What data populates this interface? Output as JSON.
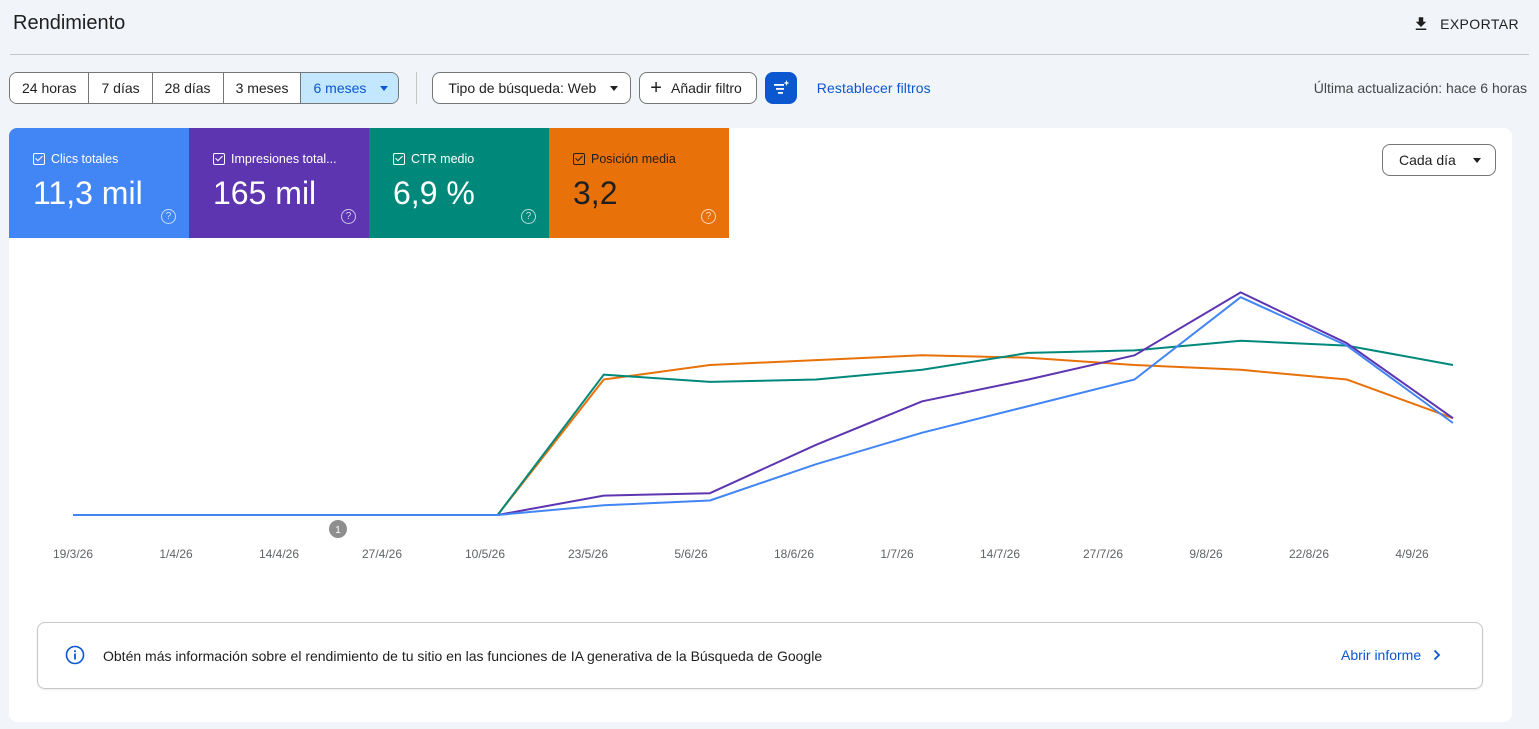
{
  "header": {
    "title": "Rendimiento",
    "export_label": "EXPORTAR"
  },
  "toolbar": {
    "ranges": [
      "24 horas",
      "7 días",
      "28 días",
      "3 meses",
      "6 meses"
    ],
    "selected_range": "6 meses",
    "search_type": "Tipo de búsqueda: Web",
    "add_filter": "Añadir filtro",
    "reset_filters": "Restablecer filtros",
    "last_update": "Última actualización: hace 6 horas"
  },
  "metrics": [
    {
      "label": "Clics totales",
      "value": "11,3 mil",
      "color": "#4285f4",
      "checked": true
    },
    {
      "label": "Impresiones total...",
      "value": "165 mil",
      "color": "#5e35b1",
      "checked": true
    },
    {
      "label": "CTR medio",
      "value": "6,9 %",
      "color": "#00897b",
      "checked": true
    },
    {
      "label": "Posición media",
      "value": "3,2",
      "color": "#e8710a",
      "checked": true
    }
  ],
  "granularity": "Cada día",
  "annotation_marker": "1",
  "chart_data": {
    "type": "line",
    "x_tick_labels": [
      "19/3/26",
      "1/4/26",
      "14/4/26",
      "27/4/26",
      "10/5/26",
      "23/5/26",
      "5/6/26",
      "18/6/26",
      "1/7/26",
      "14/7/26",
      "27/7/26",
      "9/8/26",
      "22/8/26",
      "4/9/26"
    ],
    "x": [
      "19/3/26",
      "1/4/26",
      "14/4/26",
      "27/4/26",
      "10/5/26",
      "23/5/26",
      "5/6/26",
      "18/6/26",
      "1/7/26",
      "14/7/26",
      "27/7/26",
      "9/8/26",
      "22/8/26",
      "4/9/26"
    ],
    "axes_shown": false,
    "grid": false,
    "normalization": "each series scaled independently (0–100)",
    "series": [
      {
        "name": "Clics totales",
        "color": "#4285f4",
        "values": [
          0,
          0,
          0,
          0,
          0,
          4,
          6,
          21,
          34,
          45,
          56,
          90,
          70,
          38
        ]
      },
      {
        "name": "Impresiones totales",
        "color": "#5e35b1",
        "values": [
          0,
          0,
          0,
          0,
          0,
          8,
          9,
          29,
          47,
          56,
          66,
          92,
          71,
          40
        ]
      },
      {
        "name": "CTR medio",
        "color": "#00897b",
        "values": [
          0,
          0,
          0,
          0,
          0,
          58,
          55,
          56,
          60,
          67,
          68,
          72,
          70,
          62
        ]
      },
      {
        "name": "Posición media",
        "color": "#e8710a",
        "values": [
          0,
          0,
          0,
          0,
          0,
          56,
          62,
          64,
          66,
          65,
          62,
          60,
          56,
          40
        ]
      }
    ]
  },
  "banner": {
    "text": "Obtén más información sobre el rendimiento de tu sitio en las funciones de IA generativa de la Búsqueda de Google",
    "link": "Abrir informe"
  }
}
